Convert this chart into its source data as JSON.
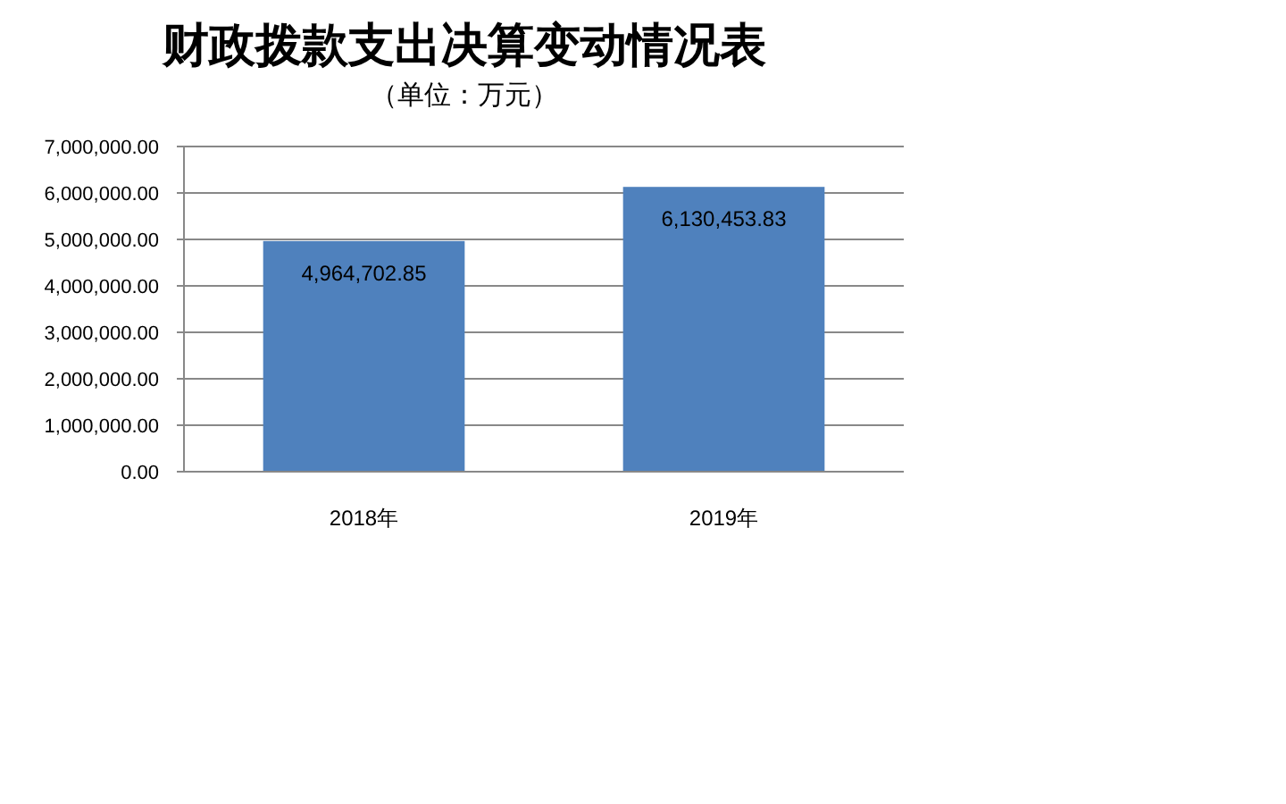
{
  "chart_data": {
    "type": "bar",
    "title": "财政拨款支出决算变动情况表",
    "subtitle": "（单位：万元）",
    "categories": [
      "2018年",
      "2019年"
    ],
    "values": [
      4964702.85,
      6130453.83
    ],
    "value_labels": [
      "4,964,702.85",
      "6,130,453.83"
    ],
    "color": "#4f81bd",
    "ylim": [
      0,
      7000000
    ],
    "yticks": [
      {
        "value": 0,
        "label": "0.00"
      },
      {
        "value": 1000000,
        "label": "1,000,000.00"
      },
      {
        "value": 2000000,
        "label": "2,000,000.00"
      },
      {
        "value": 3000000,
        "label": "3,000,000.00"
      },
      {
        "value": 4000000,
        "label": "4,000,000.00"
      },
      {
        "value": 5000000,
        "label": "5,000,000.00"
      },
      {
        "value": 6000000,
        "label": "6,000,000.00"
      },
      {
        "value": 7000000,
        "label": "7,000,000.00"
      }
    ],
    "grid": "y"
  }
}
